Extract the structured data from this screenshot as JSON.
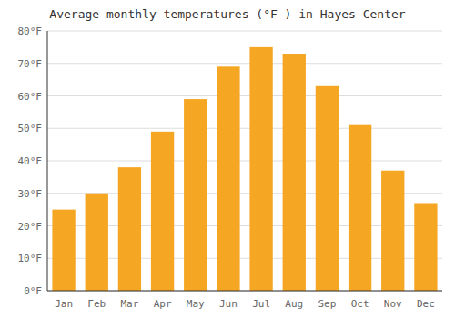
{
  "chart_data": {
    "type": "bar",
    "title": "Average monthly temperatures (°F ) in Hayes Center",
    "categories": [
      "Jan",
      "Feb",
      "Mar",
      "Apr",
      "May",
      "Jun",
      "Jul",
      "Aug",
      "Sep",
      "Oct",
      "Nov",
      "Dec"
    ],
    "values": [
      25,
      30,
      38,
      49,
      59,
      69,
      75,
      73,
      63,
      51,
      37,
      27
    ],
    "color": "#F5A623",
    "ylim": [
      0,
      80
    ],
    "yticks": [
      {
        "value": 0,
        "label": "0°F"
      },
      {
        "value": 10,
        "label": "10°F"
      },
      {
        "value": 20,
        "label": "20°F"
      },
      {
        "value": 30,
        "label": "30°F"
      },
      {
        "value": 40,
        "label": "40°F"
      },
      {
        "value": 50,
        "label": "50°F"
      },
      {
        "value": 60,
        "label": "60°F"
      },
      {
        "value": 70,
        "label": "70°F"
      },
      {
        "value": 80,
        "label": "80°F"
      }
    ],
    "grid": true
  }
}
